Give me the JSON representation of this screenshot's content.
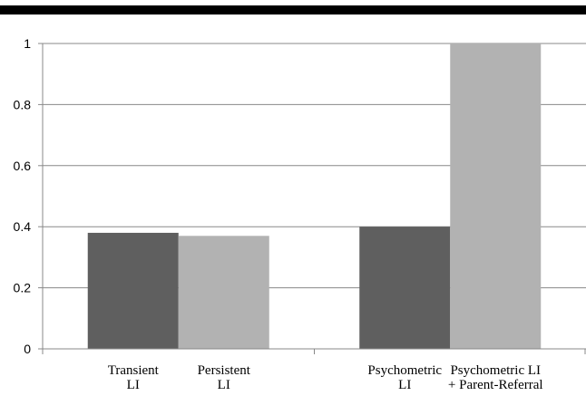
{
  "chart_data": {
    "type": "bar",
    "title": "",
    "xlabel": "",
    "ylabel": "",
    "ylim": [
      0,
      1
    ],
    "yticks": [
      0,
      0.2,
      0.4,
      0.6,
      0.8,
      1
    ],
    "ytick_labels": [
      "0",
      "0.2",
      "0.4",
      "0.6",
      "0.8",
      "1"
    ],
    "grid": true,
    "legend": "none",
    "groups": [
      {
        "bars": [
          {
            "label_lines": [
              "Transient",
              "LI"
            ],
            "value": 0.38,
            "color": "#5f5f5f"
          },
          {
            "label_lines": [
              "Persistent",
              "LI"
            ],
            "value": 0.37,
            "color": "#b2b2b2"
          }
        ]
      },
      {
        "bars": [
          {
            "label_lines": [
              "Psychometric",
              "LI"
            ],
            "value": 0.4,
            "color": "#5f5f5f"
          },
          {
            "label_lines": [
              "Psychometric LI",
              "+ Parent-Referral"
            ],
            "value": 1.0,
            "color": "#b2b2b2"
          }
        ]
      }
    ]
  }
}
